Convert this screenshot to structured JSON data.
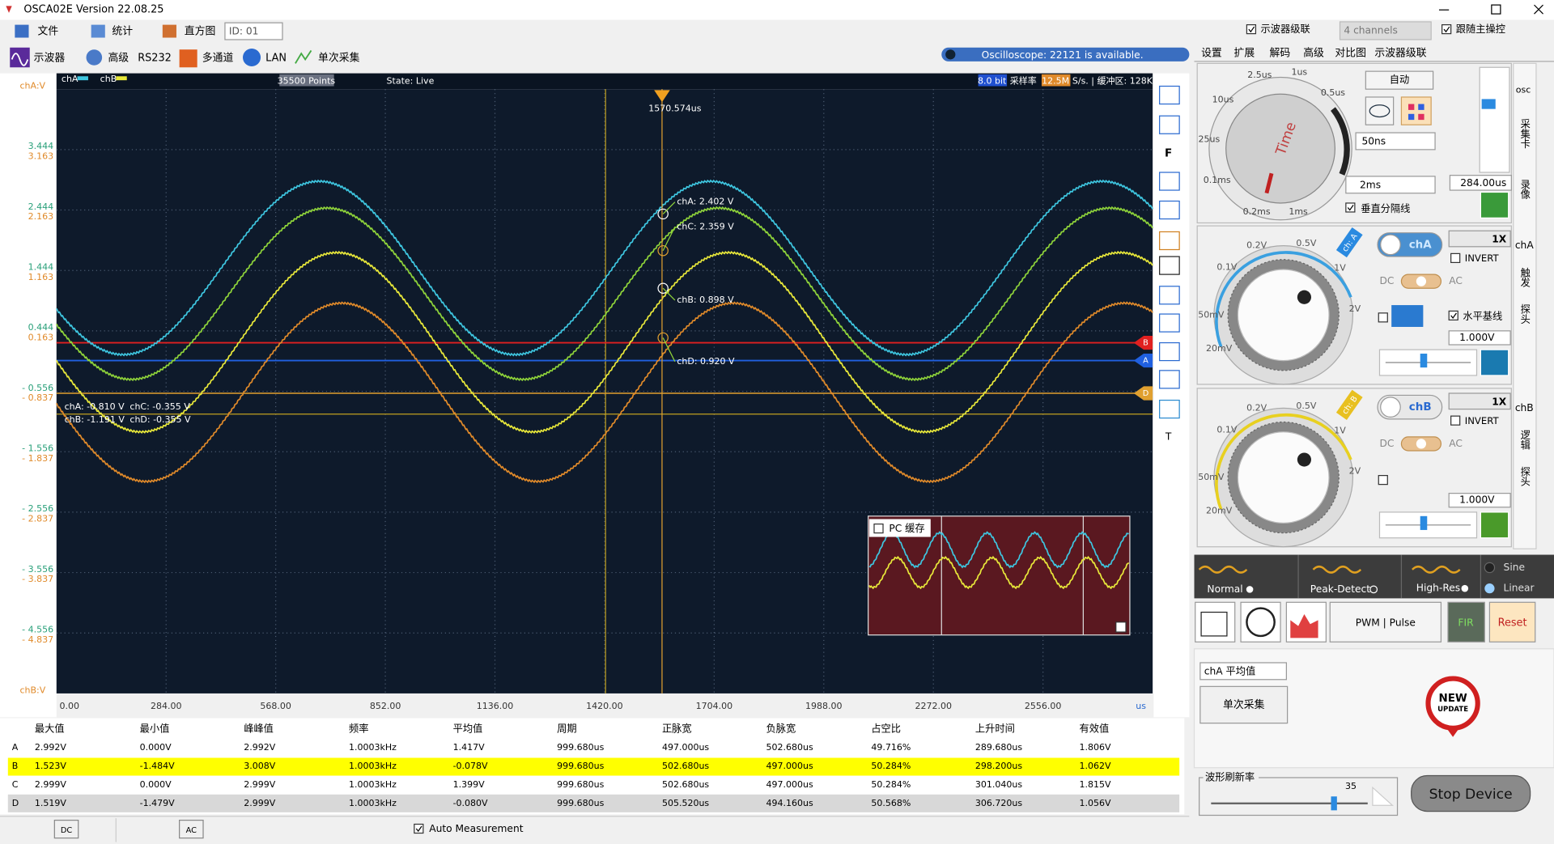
{
  "title_bar": {
    "title": "OSCA02E  Version 22.08.25"
  },
  "menu": {
    "items": [
      "文件",
      "统计",
      "直方图"
    ],
    "id": "ID: 01",
    "cascade": "示波器级联",
    "channels": "4 channels",
    "follow": "跟随主操控"
  },
  "toolbar": {
    "items": [
      "示波器",
      "高级",
      "RS232",
      "多通道",
      "LAN",
      "单次采集"
    ],
    "status": "Oscilloscope: 22121 is available."
  },
  "tabs": [
    "设置",
    "扩展",
    "解码",
    "高级",
    "对比图",
    "示波器级联"
  ],
  "plot": {
    "legend": [
      "chA",
      "chB"
    ],
    "points": "35500 Points",
    "state": "State: Live",
    "bits": "8.0 bit",
    "rate_label": "采样率",
    "rate": "12.5M",
    "rate_unit": "S/s. | 缓冲区: 128K.",
    "cursor_time": "1570.574us",
    "y_title_a": "chA:V",
    "y_title_b": "chB:V",
    "y_labels": [
      [
        "3.444",
        "3.163"
      ],
      [
        "2.444",
        "2.163"
      ],
      [
        "1.444",
        "1.163"
      ],
      [
        "0.444",
        "0.163"
      ],
      [
        "- 0.556",
        "- 0.837"
      ],
      [
        "- 1.556",
        "- 1.837"
      ],
      [
        "- 2.556",
        "- 2.837"
      ],
      [
        "- 3.556",
        "- 3.837"
      ],
      [
        "- 4.556",
        "- 4.837"
      ]
    ],
    "x_labels": [
      "0.00",
      "284.00",
      "568.00",
      "852.00",
      "1136.00",
      "1420.00",
      "1704.00",
      "1988.00",
      "2272.00",
      "2556.00"
    ],
    "x_unit": "us",
    "readouts": [
      "chA: 2.402 V",
      "chC: 2.359 V",
      "chB: 0.898 V",
      "chD: 0.920 V"
    ],
    "readouts_low": [
      "chA: -0.810 V",
      "chC: -0.355 V",
      "chB: -1.191 V",
      "chD: -0.355 V"
    ],
    "markers": [
      "B",
      "A",
      "D"
    ],
    "side": [
      "F",
      "T"
    ],
    "inset": "PC 缓存"
  },
  "table": {
    "headers": [
      "最大值",
      "最小值",
      "峰峰值",
      "频率",
      "平均值",
      "周期",
      "正脉宽",
      "负脉宽",
      "占空比",
      "上升时间",
      "有效值"
    ],
    "rows": [
      [
        "A",
        "2.992V",
        "0.000V",
        "2.992V",
        "1.0003kHz",
        "1.417V",
        "999.680us",
        "497.000us",
        "502.680us",
        "49.716%",
        "289.680us",
        "1.806V"
      ],
      [
        "B",
        "1.523V",
        "-1.484V",
        "3.008V",
        "1.0003kHz",
        "-0.078V",
        "999.680us",
        "502.680us",
        "497.000us",
        "50.284%",
        "298.200us",
        "1.062V"
      ],
      [
        "C",
        "2.999V",
        "0.000V",
        "2.999V",
        "1.0003kHz",
        "1.399V",
        "999.680us",
        "502.680us",
        "497.000us",
        "50.284%",
        "301.040us",
        "1.815V"
      ],
      [
        "D",
        "1.519V",
        "-1.479V",
        "2.999V",
        "1.0003kHz",
        "-0.080V",
        "999.680us",
        "505.520us",
        "494.160us",
        "50.568%",
        "306.720us",
        "1.056V"
      ]
    ]
  },
  "bottom": {
    "dc": "DC",
    "ac": "AC",
    "auto": "Auto Measurement"
  },
  "timebase": {
    "knob": [
      "2.5us",
      "1us",
      "0.5us",
      "10us",
      "25us",
      "0.1ms",
      "0.2ms",
      "1ms"
    ],
    "knob_title": "Time",
    "auto": "自动",
    "fine": "50ns",
    "coarse": "2ms",
    "offset": "284.00us",
    "divider": "垂直分隔线",
    "side": [
      "osc",
      "采集卡",
      "录像"
    ]
  },
  "cha": {
    "name": "chA",
    "probe": "1X",
    "invert": "INVERT",
    "dc": "DC",
    "ac": "AC",
    "baseline": "水平基线",
    "volts": "1.000V",
    "knob": [
      "0.2V",
      "0.5V",
      "1V",
      "2V",
      "0.1V",
      "50mV",
      "20mV"
    ],
    "tag": "ch: A",
    "side": [
      "chA",
      "触发",
      "探头"
    ]
  },
  "chb": {
    "name": "chB",
    "probe": "1X",
    "invert": "INVERT",
    "dc": "DC",
    "ac": "AC",
    "volts": "1.000V",
    "knob": [
      "0.2V",
      "0.5V",
      "1V",
      "2V",
      "0.1V",
      "50mV",
      "20mV"
    ],
    "tag": "ch: B",
    "side": [
      "chB",
      "逻辑",
      "探头"
    ]
  },
  "modes": [
    "Normal",
    "Peak-Detect",
    "High-Res",
    "Sine",
    "Linear"
  ],
  "buttons": {
    "pwm": "PWM | Pulse",
    "fir": "FIR",
    "reset": "Reset",
    "measure": "chA 平均值",
    "single": "单次采集",
    "badge": [
      "NEW",
      "UPDATE"
    ],
    "refresh": "波形刷新率",
    "refresh_value": "35",
    "stop": "Stop Device"
  }
}
